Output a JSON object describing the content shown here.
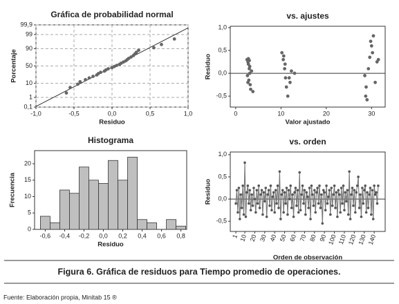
{
  "chart_data": [
    {
      "type": "probability",
      "title": "Gráfica de probabilidad normal",
      "xlabel": "Residuo",
      "ylabel": "Porcentaje",
      "x": [
        -0.6,
        -0.55,
        -0.45,
        -0.42,
        -0.35,
        -0.3,
        -0.25,
        -0.2,
        -0.18,
        -0.15,
        -0.1,
        -0.08,
        -0.05,
        0.0,
        0.03,
        0.06,
        0.1,
        0.12,
        0.15,
        0.18,
        0.2,
        0.22,
        0.25,
        0.28,
        0.3,
        0.32,
        0.35,
        0.55,
        0.65,
        0.82
      ],
      "values": [
        2.3,
        5.6,
        8.9,
        12.2,
        15.5,
        18.8,
        22.0,
        25.3,
        28.6,
        31.9,
        35.2,
        38.5,
        41.8,
        45.1,
        48.4,
        51.6,
        54.9,
        58.2,
        61.5,
        64.8,
        68.1,
        71.4,
        74.7,
        78.0,
        81.3,
        84.5,
        87.8,
        91.1,
        94.4,
        97.7
      ],
      "color": "#666666",
      "yscale": "probability",
      "grid": true,
      "fit_line": true,
      "xlim": [
        -1,
        1
      ],
      "ylim": [
        0.1,
        99.9
      ],
      "xticks": [
        {
          "value": -1,
          "label": "-1,0"
        },
        {
          "value": -0.5,
          "label": "-0,5"
        },
        {
          "value": 0,
          "label": "0,0"
        },
        {
          "value": 0.5,
          "label": "0,5"
        },
        {
          "value": 1,
          "label": "1,0"
        }
      ],
      "yticks": [
        {
          "value": 0.1,
          "label": "0,1"
        },
        1,
        10,
        50,
        90,
        99,
        {
          "value": 99.9,
          "label": "99,9"
        }
      ]
    },
    {
      "type": "scatter",
      "title": "vs. ajustes",
      "xlabel": "Valor ajustado",
      "ylabel": "Residuo",
      "x": [
        2.5,
        2.7,
        2.8,
        3.0,
        3.1,
        2.6,
        2.9,
        3.2,
        3.3,
        2.8,
        3.0,
        3.5,
        3.8,
        2.7,
        3.1,
        10.2,
        10.5,
        10.8,
        11.0,
        11.2,
        10.6,
        11.5,
        12.0,
        12.3,
        10.9,
        11.8,
        13.0,
        28.5,
        28.8,
        29.0,
        29.3,
        29.6,
        30.0,
        30.4,
        30.8,
        31.2,
        31.5,
        28.7,
        29.8,
        30.2
      ],
      "values": [
        0.3,
        0.25,
        0.2,
        0.1,
        0.0,
        -0.05,
        -0.15,
        -0.25,
        -0.35,
        0.32,
        0.28,
        0.05,
        -0.4,
        -0.2,
        0.15,
        0.45,
        0.3,
        0.1,
        -0.1,
        -0.3,
        0.38,
        -0.5,
        -0.2,
        0.05,
        0.2,
        -0.1,
        0.0,
        -0.05,
        -0.3,
        -0.58,
        0.1,
        0.35,
        0.6,
        0.82,
        -0.2,
        0.25,
        0.3,
        -0.5,
        0.7,
        0.45
      ],
      "color": "#666666",
      "hline": 0,
      "xlim": [
        -1.2,
        33
      ],
      "ylim": [
        -0.74,
        1.03
      ],
      "xticks": [
        0,
        10,
        20,
        30
      ],
      "yticks": [
        {
          "value": -0.5,
          "label": "-0,5"
        },
        {
          "value": 0,
          "label": "0,0"
        },
        {
          "value": 0.5,
          "label": "0,5"
        },
        {
          "value": 1,
          "label": "1,0"
        }
      ]
    },
    {
      "type": "histogram",
      "title": "Histograma",
      "xlabel": "Residuo",
      "ylabel": "Frecuencia",
      "bins": [
        -0.65,
        -0.55,
        -0.45,
        -0.35,
        -0.25,
        -0.15,
        -0.05,
        0.05,
        0.15,
        0.25,
        0.35,
        0.45,
        0.55,
        0.65,
        0.75,
        0.85
      ],
      "values": [
        4,
        2,
        12,
        11,
        19,
        15,
        14,
        21,
        15,
        22,
        3,
        2,
        0,
        3,
        1
      ],
      "color": "#bfbfbf",
      "xlim": [
        -0.71,
        0.86
      ],
      "ylim": [
        0,
        24
      ],
      "xticks": [
        {
          "value": -0.6,
          "label": "-0,6"
        },
        {
          "value": -0.4,
          "label": "-0,4"
        },
        {
          "value": -0.2,
          "label": "-0,2"
        },
        {
          "value": 0,
          "label": "0,0"
        },
        {
          "value": 0.2,
          "label": "0,2"
        },
        {
          "value": 0.4,
          "label": "0,4"
        },
        {
          "value": 0.6,
          "label": "0,6"
        },
        {
          "value": 0.8,
          "label": "0,8"
        }
      ],
      "yticks": [
        0,
        5,
        10,
        15,
        20
      ]
    },
    {
      "type": "line",
      "title": "vs. orden",
      "xlabel": "Orden de observación",
      "ylabel": "Residuo",
      "x": [
        1,
        2,
        3,
        4,
        5,
        6,
        7,
        8,
        9,
        10,
        11,
        12,
        13,
        14,
        15,
        16,
        17,
        18,
        19,
        20,
        21,
        22,
        23,
        24,
        25,
        26,
        27,
        28,
        29,
        30,
        31,
        32,
        33,
        34,
        35,
        36,
        37,
        38,
        39,
        40,
        41,
        42,
        43,
        44,
        45,
        46,
        47,
        48,
        49,
        50,
        51,
        52,
        53,
        54,
        55,
        56,
        57,
        58,
        59,
        60,
        61,
        62,
        63,
        64,
        65,
        66,
        67,
        68,
        69,
        70,
        71,
        72,
        73,
        74,
        75,
        76,
        77,
        78,
        79,
        80,
        81,
        82,
        83,
        84,
        85,
        86,
        87,
        88,
        89,
        90,
        91,
        92,
        93,
        94,
        95,
        96,
        97,
        98,
        99,
        100,
        101,
        102,
        103,
        104,
        105,
        106,
        107,
        108,
        109,
        110,
        111,
        112,
        113,
        114,
        115,
        116,
        117,
        118,
        119,
        120,
        121,
        122,
        123,
        124,
        125,
        126,
        127,
        128,
        129,
        130,
        131,
        132,
        133,
        134,
        135,
        136,
        137,
        138,
        139,
        140,
        141,
        142,
        143,
        144
      ],
      "values": [
        -0.1,
        0.2,
        -0.3,
        0.25,
        -0.45,
        0.1,
        -0.2,
        0.3,
        -0.35,
        0.82,
        -0.4,
        0.15,
        0.3,
        -0.1,
        0.2,
        -0.25,
        0.1,
        -0.15,
        0.25,
        0.0,
        -0.3,
        0.2,
        -0.1,
        0.3,
        -0.2,
        0.1,
        0.2,
        -0.35,
        0.15,
        -0.05,
        0.25,
        -0.4,
        0.1,
        0.2,
        -0.15,
        0.3,
        -0.25,
        0.05,
        0.15,
        -0.3,
        0.2,
        -0.1,
        0.3,
        -0.2,
        0.62,
        -0.45,
        0.1,
        0.2,
        -0.3,
        0.15,
        -0.1,
        0.25,
        -0.35,
        0.2,
        0.0,
        0.3,
        -0.2,
        0.1,
        -0.4,
        0.15,
        0.25,
        -0.15,
        0.2,
        -0.3,
        0.6,
        -0.25,
        0.1,
        0.3,
        -0.1,
        0.2,
        -0.35,
        0.15,
        0.05,
        -0.2,
        0.25,
        -0.45,
        0.3,
        0.1,
        -0.15,
        0.2,
        -0.3,
        0.15,
        0.25,
        -0.1,
        0.3,
        -0.2,
        0.1,
        -0.55,
        0.2,
        0.15,
        -0.25,
        0.3,
        -0.1,
        0.05,
        0.2,
        -0.35,
        0.25,
        -0.15,
        0.1,
        0.3,
        -0.2,
        0.15,
        -0.4,
        0.2,
        0.1,
        -0.3,
        0.25,
        -0.1,
        0.3,
        -0.25,
        0.15,
        -0.05,
        0.2,
        -0.35,
        0.62,
        -0.45,
        0.1,
        0.25,
        -0.15,
        0.2,
        -0.3,
        0.15,
        0.3,
        0.5,
        -0.2,
        0.1,
        -0.4,
        0.25,
        -0.1,
        0.2,
        0.3,
        -0.3,
        0.15,
        -0.2,
        0.1,
        0.25,
        -0.35,
        0.2,
        -0.45,
        0.3,
        0.1,
        0.15,
        -0.1,
        0.3
      ],
      "color": "#777777",
      "hline": 0,
      "xlim": [
        -4.6,
        151
      ],
      "ylim": [
        -0.73,
        1.06
      ],
      "xticks": [
        1,
        10,
        20,
        30,
        40,
        50,
        60,
        70,
        80,
        90,
        100,
        110,
        120,
        130,
        140
      ],
      "yticks": [
        {
          "value": -0.5,
          "label": "-0,5"
        },
        {
          "value": 0,
          "label": "0,0"
        },
        {
          "value": 0.5,
          "label": "0,5"
        },
        {
          "value": 1,
          "label": "1,0"
        }
      ]
    }
  ],
  "caption": "Figura 6. Gráfica de residuos para Tiempo promedio de operaciones.",
  "source": "Fuente: Elaboración propia, Minitab 15 ®"
}
